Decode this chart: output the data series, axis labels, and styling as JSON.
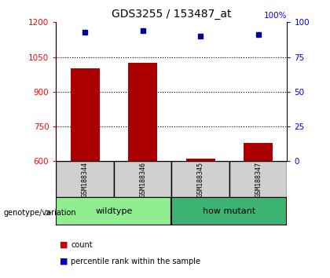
{
  "title": "GDS3255 / 153487_at",
  "samples": [
    "GSM188344",
    "GSM188346",
    "GSM188345",
    "GSM188347"
  ],
  "groups": [
    {
      "label": "wildtype",
      "indices": [
        0,
        1
      ],
      "color": "#90EE90"
    },
    {
      "label": "how mutant",
      "indices": [
        2,
        3
      ],
      "color": "#3CB371"
    }
  ],
  "count_values": [
    1000,
    1025,
    612,
    680
  ],
  "percentile_values": [
    93,
    94,
    90,
    91
  ],
  "ylim_left": [
    600,
    1200
  ],
  "ylim_right": [
    0,
    100
  ],
  "yticks_left": [
    600,
    750,
    900,
    1050,
    1200
  ],
  "yticks_right": [
    0,
    25,
    50,
    75,
    100
  ],
  "bar_color": "#AA0000",
  "dot_color": "#000099",
  "bar_width": 0.5,
  "legend_count_color": "#CC0000",
  "legend_dot_color": "#0000CC",
  "title_fontsize": 10,
  "sample_cell_color": "#d0d0d0",
  "wildtype_color": "#90EE90",
  "howmutant_color": "#3CB371"
}
